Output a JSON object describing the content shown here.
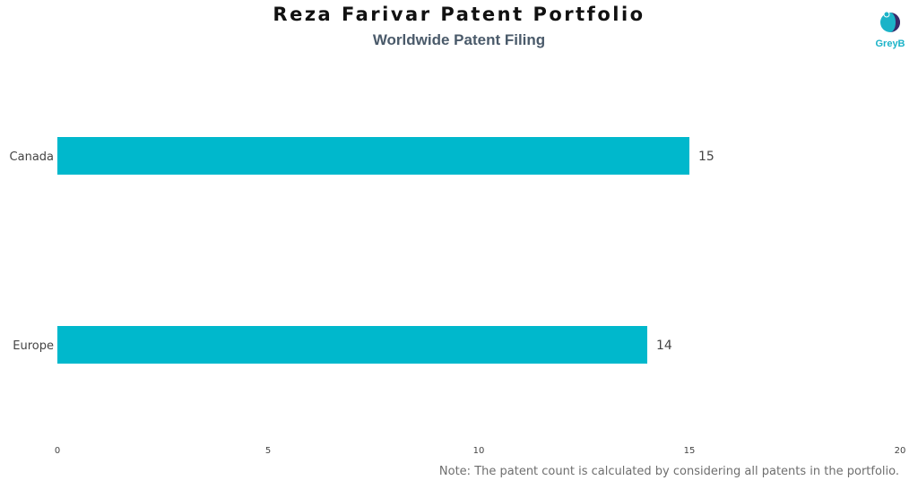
{
  "header": {
    "title": "Reza Farivar Patent Portfolio",
    "subtitle": "Worldwide Patent Filing"
  },
  "logo": {
    "text": "GreyB",
    "colors": {
      "primary": "#1bb3c8",
      "dark": "#3a2a6a"
    }
  },
  "note": "Note: The patent count is calculated by considering all patents in the portfolio.",
  "colors": {
    "bar": "#00b8cc",
    "text": "#444444"
  },
  "chart_data": {
    "type": "bar",
    "orientation": "horizontal",
    "title": "Reza Farivar Patent Portfolio",
    "subtitle": "Worldwide Patent Filing",
    "categories": [
      "Canada",
      "Europe"
    ],
    "values": [
      15,
      14
    ],
    "xlim": [
      0,
      20
    ],
    "xticks": [
      0,
      5,
      10,
      15,
      20
    ],
    "grid": false,
    "legend": "none",
    "data_labels": true
  }
}
